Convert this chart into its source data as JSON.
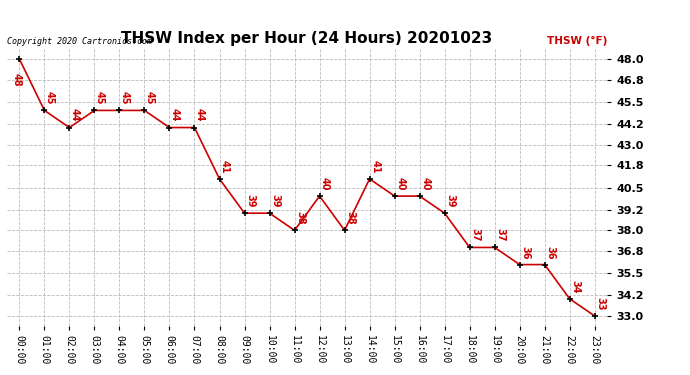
{
  "title": "THSW Index per Hour (24 Hours) 20201023",
  "copyright": "Copyright 2020 Cartronics.com",
  "legend_label": "THSW (°F)",
  "hours": [
    0,
    1,
    2,
    3,
    4,
    5,
    6,
    7,
    8,
    9,
    10,
    11,
    12,
    13,
    14,
    15,
    16,
    17,
    18,
    19,
    20,
    21,
    22,
    23
  ],
  "values": [
    48,
    45,
    44,
    45,
    45,
    45,
    44,
    44,
    41,
    39,
    39,
    38,
    40,
    38,
    41,
    40,
    40,
    39,
    37,
    37,
    36,
    36,
    34,
    33
  ],
  "line_color": "#cc0000",
  "marker_color": "#000000",
  "label_color": "#cc0000",
  "background_color": "#ffffff",
  "grid_color": "#bbbbbb",
  "yticks": [
    33.0,
    34.2,
    35.5,
    36.8,
    38.0,
    39.2,
    40.5,
    41.8,
    43.0,
    44.2,
    45.5,
    46.8,
    48.0
  ],
  "ylim": [
    32.4,
    48.6
  ],
  "title_fontsize": 11,
  "tick_fontsize": 7,
  "label_fontsize": 7,
  "value_fontsize": 7
}
